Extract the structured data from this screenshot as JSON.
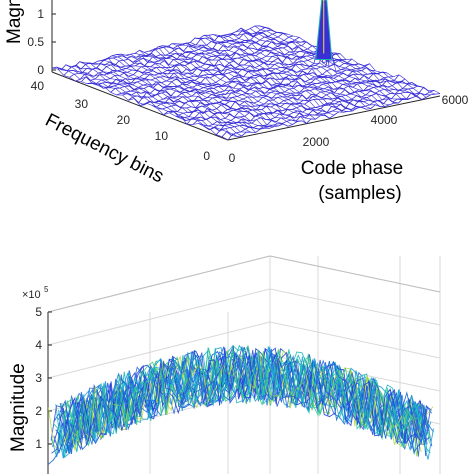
{
  "colors": {
    "mesh_top": "#3a2fd6",
    "peak_teal": "#1fb3b0",
    "peak_yellow": "#f2e030",
    "axis": "#262626",
    "grid": "#d9d9d9"
  },
  "chart_data": [
    {
      "type": "surface",
      "title": "",
      "zlabel": "Magnitude",
      "zlabel_visible": "Magni",
      "xlabel_line1": "Code phase",
      "xlabel_line2": "(samples)",
      "ylabel": "Frequency bins",
      "z_ticks": [
        "0",
        "0.5",
        "1"
      ],
      "x_ticks": [
        "0",
        "2000",
        "4000",
        "6000"
      ],
      "y_ticks": [
        "0",
        "10",
        "20",
        "30",
        "40"
      ],
      "x_range": [
        0,
        6000
      ],
      "y_range": [
        0,
        40
      ],
      "z_range": [
        0,
        1.1
      ],
      "noise_level": 0.1,
      "peak": {
        "code_phase": 5200,
        "frequency_bin": 20,
        "magnitude": 1.1
      }
    },
    {
      "type": "surface",
      "title": "",
      "zlabel": "Magnitude",
      "exponent_base": "×10",
      "exponent_power": "5",
      "z_ticks": [
        "1",
        "2",
        "3",
        "4",
        "5"
      ],
      "z_range": [
        0,
        5
      ],
      "note": "noise-only correlation surface, no dominant peak, values mostly between 1 and 4 ×10^5"
    }
  ]
}
